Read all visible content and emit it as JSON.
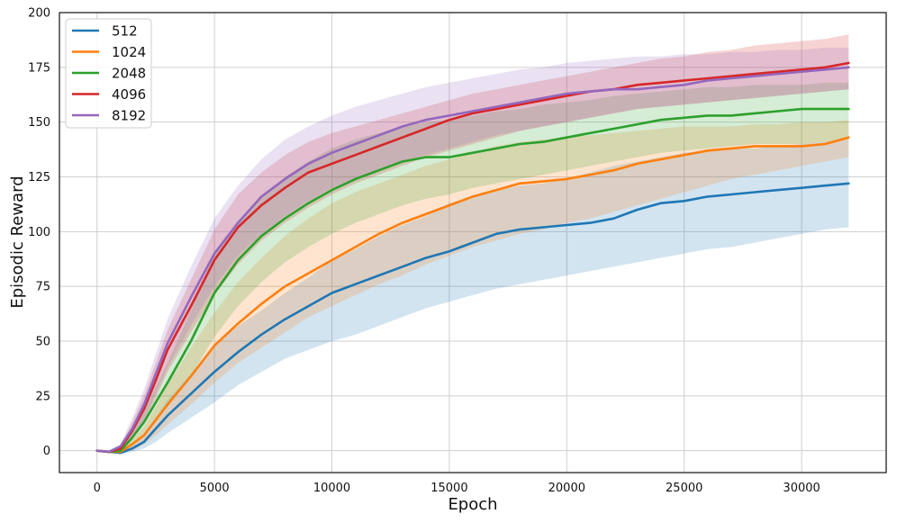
{
  "chart_data": {
    "type": "line",
    "title": "",
    "xlabel": "Epoch",
    "ylabel": "Episodic Reward",
    "xlim": [
      -1600,
      33600
    ],
    "ylim": [
      -10,
      200
    ],
    "xticks": [
      0,
      5000,
      10000,
      15000,
      20000,
      25000,
      30000
    ],
    "yticks": [
      0,
      25,
      50,
      75,
      100,
      125,
      150,
      175,
      200
    ],
    "grid": true,
    "legend_position": "top-left",
    "colors": {
      "512": "#1f77b4",
      "1024": "#ff7f0e",
      "2048": "#2ca02c",
      "4096": "#d62728",
      "8192": "#9467bd"
    },
    "x": [
      0,
      500,
      1000,
      1500,
      2000,
      2500,
      3000,
      4000,
      5000,
      6000,
      7000,
      8000,
      9000,
      10000,
      11000,
      12000,
      13000,
      14000,
      15000,
      16000,
      17000,
      18000,
      19000,
      20000,
      21000,
      22000,
      23000,
      24000,
      25000,
      26000,
      27000,
      28000,
      29000,
      30000,
      31000,
      32000
    ],
    "series": [
      {
        "name": "512",
        "values": [
          0,
          -0.5,
          -1,
          1,
          4,
          10,
          16,
          26,
          36,
          45,
          53,
          60,
          66,
          72,
          76,
          80,
          84,
          88,
          91,
          95,
          99,
          101,
          102,
          103,
          104,
          106,
          110,
          113,
          114,
          116,
          117,
          118,
          119,
          120,
          121,
          122
        ],
        "lower": [
          0,
          -0.5,
          -1.5,
          -0.5,
          1,
          4,
          8,
          15,
          22,
          30,
          36,
          42,
          46,
          50,
          53,
          57,
          61,
          65,
          68,
          71,
          74,
          76,
          78,
          80,
          82,
          84,
          86,
          88,
          90,
          92,
          93,
          95,
          97,
          99,
          101,
          102
        ],
        "upper": [
          0,
          -0.5,
          -0.5,
          2,
          7,
          15,
          23,
          35,
          48,
          57,
          64,
          72,
          79,
          87,
          92,
          98,
          103,
          107,
          113,
          116,
          119,
          121,
          122,
          124,
          127,
          130,
          132,
          134,
          136,
          137,
          138,
          138,
          139,
          140,
          141,
          142
        ]
      },
      {
        "name": "1024",
        "values": [
          0,
          -0.5,
          -0.5,
          3,
          7,
          14,
          21,
          34,
          48,
          58,
          67,
          75,
          81,
          87,
          93,
          99,
          104,
          108,
          112,
          116,
          119,
          122,
          123,
          124,
          126,
          128,
          131,
          133,
          135,
          137,
          138,
          139,
          139,
          139,
          140,
          143
        ],
        "lower": [
          0,
          -0.5,
          -1,
          0,
          3,
          7,
          12,
          21,
          31,
          40,
          47,
          54,
          61,
          66,
          71,
          76,
          80,
          85,
          89,
          93,
          96,
          99,
          101,
          104,
          106,
          109,
          112,
          115,
          118,
          121,
          124,
          126,
          128,
          130,
          132,
          134
        ],
        "upper": [
          0,
          -0.5,
          0,
          5,
          11,
          20,
          30,
          47,
          63,
          77,
          88,
          98,
          106,
          113,
          118,
          122,
          126,
          130,
          133,
          136,
          139,
          141,
          142,
          143,
          144,
          145,
          146,
          147,
          148,
          148,
          148,
          149,
          149,
          150,
          150,
          151
        ]
      },
      {
        "name": "2048",
        "values": [
          0,
          -0.5,
          0,
          6,
          13,
          22,
          31,
          50,
          72,
          87,
          98,
          106,
          113,
          119,
          124,
          128,
          132,
          134,
          134,
          136,
          138,
          140,
          141,
          143,
          145,
          147,
          149,
          151,
          152,
          153,
          153,
          154,
          155,
          156,
          156,
          156
        ],
        "lower": [
          0,
          -0.5,
          -0.5,
          2,
          8,
          14,
          20,
          34,
          52,
          66,
          77,
          86,
          93,
          99,
          104,
          108,
          112,
          115,
          117,
          120,
          122,
          124,
          126,
          128,
          130,
          132,
          134,
          136,
          137,
          138,
          139,
          140,
          140,
          140,
          141,
          142
        ],
        "upper": [
          0,
          -0.5,
          1,
          9,
          18,
          29,
          40,
          64,
          90,
          105,
          116,
          125,
          132,
          138,
          142,
          145,
          148,
          150,
          151,
          153,
          155,
          156,
          158,
          159,
          160,
          162,
          163,
          164,
          165,
          166,
          166,
          167,
          167,
          167,
          168,
          168
        ]
      },
      {
        "name": "4096",
        "values": [
          0,
          -0.5,
          1,
          9,
          19,
          32,
          46,
          66,
          87,
          102,
          112,
          120,
          127,
          131,
          135,
          139,
          143,
          147,
          151,
          154,
          156,
          158,
          160,
          162,
          164,
          165,
          167,
          168,
          169,
          170,
          171,
          172,
          173,
          174,
          175,
          177
        ],
        "lower": [
          0,
          -0.5,
          0,
          5,
          13,
          24,
          36,
          54,
          71,
          85,
          96,
          104,
          111,
          117,
          122,
          126,
          130,
          134,
          137,
          140,
          143,
          146,
          148,
          150,
          152,
          154,
          156,
          157,
          158,
          159,
          160,
          161,
          162,
          163,
          164,
          165
        ],
        "upper": [
          0,
          -0.5,
          2,
          13,
          25,
          40,
          55,
          78,
          101,
          117,
          127,
          135,
          141,
          145,
          148,
          151,
          154,
          157,
          160,
          163,
          165,
          167,
          169,
          171,
          173,
          175,
          177,
          179,
          180,
          182,
          183,
          185,
          186,
          187,
          188,
          190
        ]
      },
      {
        "name": "8192",
        "values": [
          0,
          -0.5,
          2,
          10,
          21,
          35,
          49,
          70,
          90,
          104,
          116,
          124,
          131,
          136,
          140,
          144,
          148,
          151,
          153,
          155,
          157,
          159,
          161,
          163,
          164,
          165,
          165,
          166,
          167,
          169,
          170,
          171,
          172,
          173,
          174,
          175
        ],
        "lower": [
          0,
          -0.5,
          0,
          5,
          14,
          26,
          38,
          57,
          75,
          89,
          99,
          107,
          114,
          120,
          124,
          128,
          132,
          135,
          138,
          141,
          144,
          146,
          148,
          150,
          152,
          154,
          156,
          157,
          158,
          159,
          160,
          161,
          162,
          163,
          164,
          165
        ],
        "upper": [
          0,
          -0.5,
          3,
          15,
          28,
          44,
          60,
          84,
          106,
          121,
          133,
          142,
          148,
          153,
          157,
          160,
          163,
          166,
          168,
          170,
          172,
          174,
          175,
          177,
          178,
          179,
          180,
          180,
          181,
          181,
          182,
          182,
          183,
          183,
          184,
          184
        ]
      }
    ]
  }
}
